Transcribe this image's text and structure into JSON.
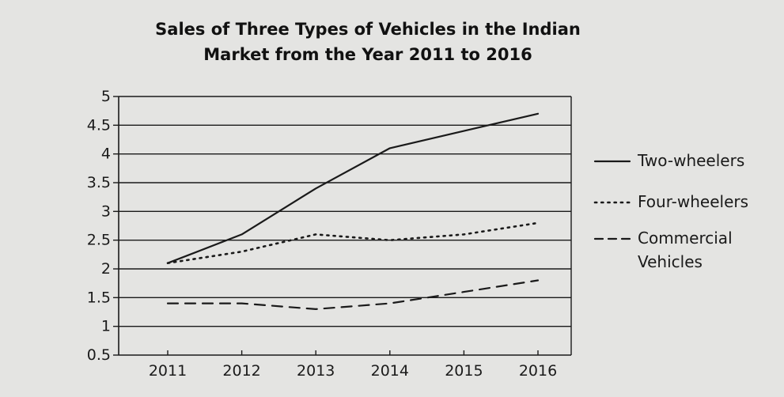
{
  "chart_data": {
    "type": "line",
    "title": [
      "Sales of Three Types of Vehicles in the Indian",
      "Market from the Year 2011 to 2016"
    ],
    "xlabel": "",
    "ylabel": "",
    "x": [
      "2011",
      "2012",
      "2013",
      "2014",
      "2015",
      "2016"
    ],
    "yticks": [
      "5",
      "4.5",
      "4",
      "3.5",
      "3",
      "2.5",
      "2",
      "1.5",
      "1",
      "0.5"
    ],
    "ylim": [
      0.5,
      5
    ],
    "grid": "horizontal",
    "legend_position": "right",
    "series": [
      {
        "name": "Two-wheelers",
        "style": "solid",
        "values": [
          2.1,
          2.6,
          3.4,
          4.1,
          4.4,
          4.7
        ]
      },
      {
        "name": "Four-wheelers",
        "style": "dotted",
        "values": [
          2.1,
          2.3,
          2.6,
          2.5,
          2.6,
          2.8
        ]
      },
      {
        "name": "Commercial Vehicles",
        "legend_lines": [
          "Commercial",
          "Vehicles"
        ],
        "style": "dashed",
        "values": [
          1.4,
          1.4,
          1.3,
          1.4,
          1.6,
          1.8
        ]
      }
    ]
  },
  "colors": {
    "line": "#1a1a1a",
    "grid": "#1a1a1a",
    "background": "#e4e4e2"
  }
}
